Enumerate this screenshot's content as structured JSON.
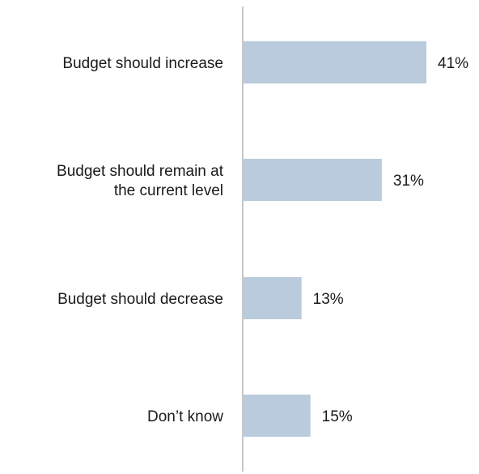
{
  "chart_data": {
    "type": "bar",
    "orientation": "horizontal",
    "title": "",
    "xlabel": "",
    "ylabel": "",
    "categories": [
      [
        "Budget should increase"
      ],
      [
        "Budget should remain at",
        "the current level"
      ],
      [
        "Budget should decrease"
      ],
      [
        "Don’t know"
      ]
    ],
    "values": [
      41,
      31,
      13,
      15
    ],
    "value_labels": [
      "41%",
      "31%",
      "13%",
      "15%"
    ],
    "xlim": [
      0,
      100
    ],
    "grid": false,
    "legend": "none",
    "bar_color": "#b9cbdc",
    "axis_color": "#c8c8c8"
  }
}
